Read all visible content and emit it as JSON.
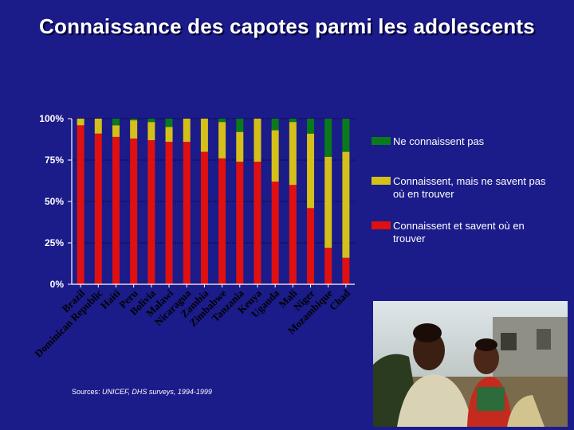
{
  "title": "Connaissance des capotes parmi les adolescents",
  "source_prefix": "Sources: ",
  "source_text": "UNICEF, DHS surveys, 1994-1999",
  "photo_icon": "photo-two-children",
  "chart_data": {
    "type": "stacked-bar",
    "title": "Connaissance des capotes parmi les adolescents",
    "categories": [
      "Brazil",
      "Dominican Republic",
      "Haiti",
      "Peru",
      "Bolivia",
      "Malawi",
      "Nicaragua",
      "Zambia",
      "Zimbabwe",
      "Tanzania",
      "Kenya",
      "Uganda",
      "Mali",
      "Niger",
      "Mozambique",
      "Chad"
    ],
    "series": [
      {
        "name": "Connaissent et savent où en trouver",
        "color": "#e01010",
        "values": [
          96,
          91,
          89,
          88,
          87,
          86,
          86,
          80,
          76,
          74,
          74,
          62,
          60,
          46,
          22,
          16
        ]
      },
      {
        "name": "Connaissent, mais ne savent pas où en trouver",
        "color": "#d4c018",
        "values": [
          4,
          9,
          7,
          11,
          11,
          9,
          14,
          20,
          22,
          18,
          26,
          31,
          38,
          45,
          55,
          64
        ]
      },
      {
        "name": "Ne connaissent pas",
        "color": "#0a7a1a",
        "values": [
          0,
          0,
          4,
          1,
          2,
          5,
          0,
          0,
          2,
          8,
          0,
          7,
          2,
          9,
          23,
          20
        ]
      }
    ],
    "legend_order": [
      "Ne connaissent pas",
      "Connaissent, mais ne savent pas où en trouver",
      "Connaissent et savent où en trouver"
    ],
    "yticks": [
      "0%",
      "25%",
      "50%",
      "75%",
      "100%"
    ],
    "ylim": [
      0,
      100
    ],
    "grid": true,
    "legend": "right"
  }
}
